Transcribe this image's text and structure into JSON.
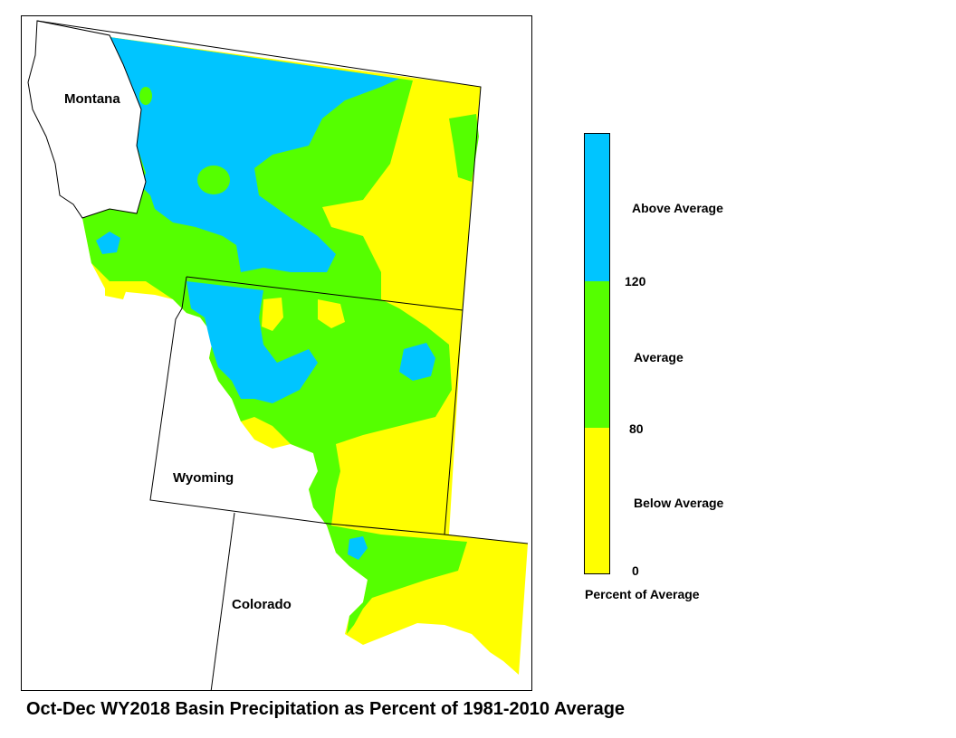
{
  "caption": "Oct-Dec WY2018 Basin Precipitation as Percent of 1981-2010 Average",
  "states": {
    "montana": "Montana",
    "wyoming": "Wyoming",
    "colorado": "Colorado"
  },
  "legend": {
    "title": "Percent of Average",
    "classes": [
      {
        "label": "Above Average",
        "color": "#00c5ff",
        "min": 120
      },
      {
        "label": "Average",
        "color": "#55ff00",
        "min": 80,
        "max": 120
      },
      {
        "label": "Below Average",
        "color": "#ffff00",
        "min": 0,
        "max": 80
      }
    ],
    "breaks": [
      "120",
      "80",
      "0"
    ]
  },
  "colors": {
    "above": "#00c5ff",
    "average": "#55ff00",
    "below": "#ffff00",
    "outline": "#000000"
  }
}
